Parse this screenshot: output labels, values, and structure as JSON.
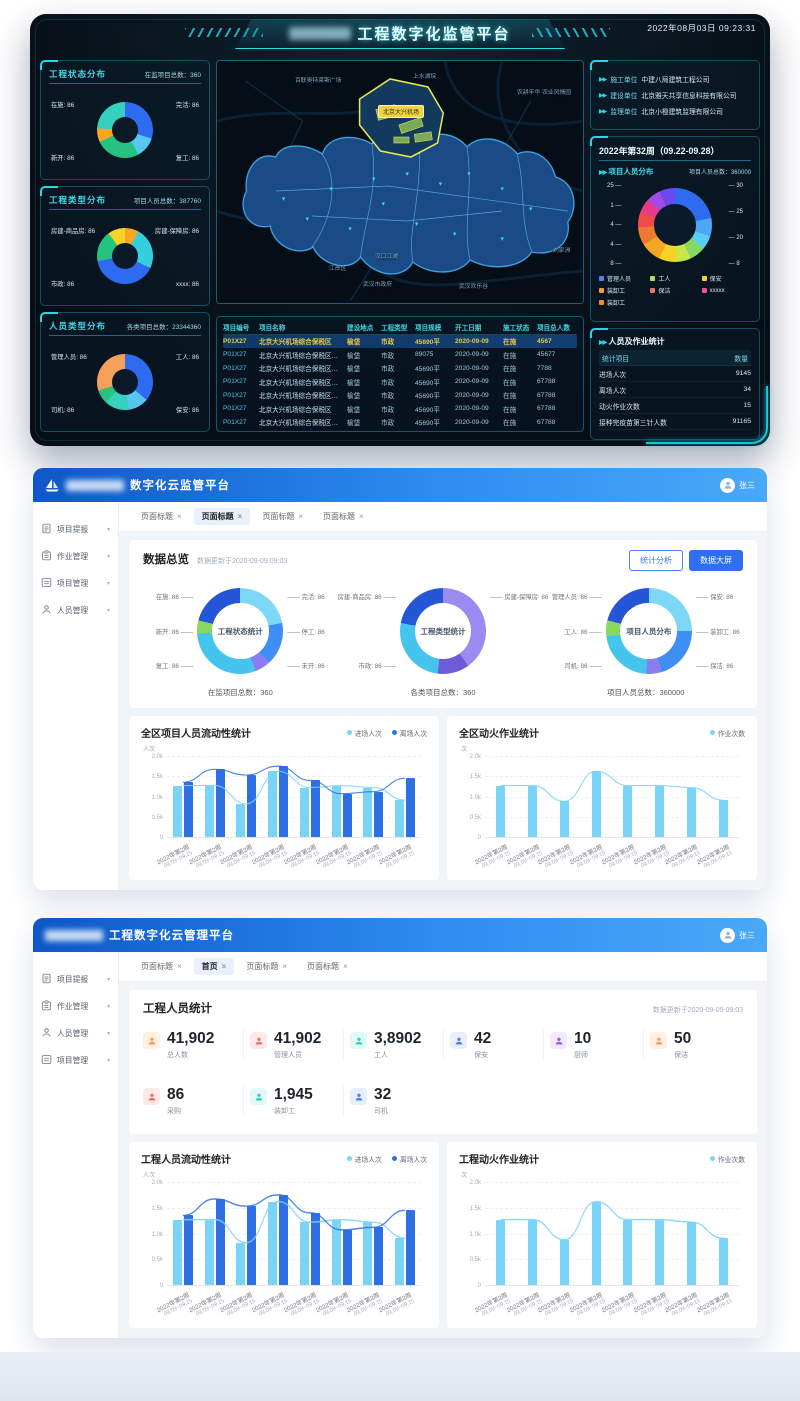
{
  "dashboard": {
    "title": "工程数字化监管平台",
    "datetime": "2022年08月03日 09:23:31",
    "left_panels": [
      {
        "title": "工程状态分布",
        "stat": "在监项目总数：360",
        "labels": {
          "tl": "在施: 86",
          "tr": "完活: 86",
          "bl": "新开: 86",
          "br": "复工: 86"
        },
        "segments": [
          {
            "color": "#2f6bf0",
            "pct": 30
          },
          {
            "color": "#57c7f0",
            "pct": 12
          },
          {
            "color": "#26c281",
            "pct": 26
          },
          {
            "color": "#f5a623",
            "pct": 8
          },
          {
            "color": "#35d0c0",
            "pct": 24
          }
        ]
      },
      {
        "title": "工程类型分布",
        "stat": "项目人员总数：387760",
        "labels": {
          "tl": "房建-商品房: 86",
          "tr": "房建-保障房: 86",
          "bl": "市政: 86",
          "br": "xxxx: 86"
        },
        "segments": [
          {
            "color": "#f5a623",
            "pct": 8
          },
          {
            "color": "#35d0e0",
            "pct": 24
          },
          {
            "color": "#2f6bf0",
            "pct": 40
          },
          {
            "color": "#26c281",
            "pct": 18
          },
          {
            "color": "#f5d327",
            "pct": 10
          }
        ]
      },
      {
        "title": "人员类型分布",
        "stat": "各类项目总数：23344360",
        "labels": {
          "tl": "管理人员: 86",
          "tr": "工人: 86",
          "bl": "司机: 86",
          "br": "保安: 86"
        },
        "segments": [
          {
            "color": "#2f6bf0",
            "pct": 36
          },
          {
            "color": "#57c7f0",
            "pct": 12
          },
          {
            "color": "#35d0c0",
            "pct": 14
          },
          {
            "color": "#26c281",
            "pct": 8
          },
          {
            "color": "#f5a05a",
            "pct": 30
          }
        ]
      }
    ],
    "map": {
      "badge": "北京大兴机场",
      "labels": [
        "百联奥特莱斯广场",
        "上水湖垸",
        "农耕年华·农业风情园",
        "汉口江滩",
        "江岸区",
        "武汉市政府",
        "武汉欢乐谷",
        "刘家洲"
      ]
    },
    "table": {
      "headers": [
        "项目编号",
        "项目名称",
        "建设地点",
        "工程类型",
        "项目规模",
        "开工日期",
        "施工状态",
        "项目总人数"
      ],
      "rows": [
        [
          "P01X27",
          "北京大兴机场综合保税区",
          "榆垡",
          "市政",
          "45690平",
          "2020-09-09",
          "在施",
          "4567"
        ],
        [
          "P01X27",
          "北京大兴机场综合保税区民生省…",
          "榆垡",
          "市政",
          "89075",
          "2020-09-09",
          "在施",
          "45677"
        ],
        [
          "P01X27",
          "北京大兴机场综合保税区民生省…",
          "榆垡",
          "市政",
          "45690平",
          "2020-09-09",
          "在施",
          "7788"
        ],
        [
          "P01X27",
          "北京大兴机场综合保税区民生省…",
          "榆垡",
          "市政",
          "45690平",
          "2020-09-09",
          "在施",
          "67788"
        ],
        [
          "P01X27",
          "北京大兴机场综合保税区民生省…",
          "榆垡",
          "市政",
          "45690平",
          "2020-09-09",
          "在施",
          "67788"
        ],
        [
          "P01X27",
          "北京大兴机场综合保税区",
          "榆垡",
          "市政",
          "45690平",
          "2020-09-09",
          "在施",
          "67788"
        ],
        [
          "P01X27",
          "北京大兴机场综合保税区民生省…",
          "榆垡",
          "市政",
          "45690平",
          "2020-09-09",
          "在施",
          "67788"
        ]
      ],
      "highlight_row": 0
    },
    "info": [
      {
        "label": "施工单位",
        "value": "中建八局建筑工程公司"
      },
      {
        "label": "建设单位",
        "value": "北京雅天共享信息科技有限公司"
      },
      {
        "label": "监理单位",
        "value": "北京小橙建筑监理有限公司"
      }
    ],
    "week": {
      "title": "2022年第32周（09.22-09.28）",
      "subtitle": "项目人员分布",
      "stat": "项目人员总数：360000",
      "callouts_left": [
        "25",
        "1",
        "4",
        "4",
        "8"
      ],
      "callouts_right": [
        "30",
        "25",
        "20",
        "8"
      ],
      "segments": [
        {
          "color": "#2f6bf0",
          "pct": 22
        },
        {
          "color": "#4aa8f5",
          "pct": 8
        },
        {
          "color": "#57d0f0",
          "pct": 6
        },
        {
          "color": "#8ad75f",
          "pct": 7
        },
        {
          "color": "#c8e84a",
          "pct": 6
        },
        {
          "color": "#f5d327",
          "pct": 8
        },
        {
          "color": "#f5a623",
          "pct": 9
        },
        {
          "color": "#f07830",
          "pct": 8
        },
        {
          "color": "#f04a4a",
          "pct": 7
        },
        {
          "color": "#e83a8c",
          "pct": 6
        },
        {
          "color": "#a04ae8",
          "pct": 6
        },
        {
          "color": "#6a4af0",
          "pct": 7
        }
      ],
      "legend": [
        {
          "label": "管理人员",
          "color": "#4a84f0"
        },
        {
          "label": "工人",
          "color": "#a8e063"
        },
        {
          "label": "保安",
          "color": "#f5d327"
        },
        {
          "label": "装卸工",
          "color": "#f59b45"
        },
        {
          "label": "保洁",
          "color": "#f26d6d"
        },
        {
          "label": "xxxxx",
          "color": "#f050a0"
        },
        {
          "label": "装卸工",
          "color": "#f58b2d"
        }
      ]
    },
    "ops": {
      "title": "人员及作业统计",
      "headers": [
        "统计项目",
        "数量"
      ],
      "rows": [
        [
          "进场人次",
          "9145"
        ],
        [
          "离场人次",
          "34"
        ],
        [
          "动火作业次数",
          "15"
        ],
        [
          "接种完疫苗第三针人数",
          "91165"
        ]
      ]
    }
  },
  "monitor": {
    "title": "数字化云监管平台",
    "user": "张三",
    "sidebar": [
      {
        "label": "项目提报",
        "icon": "doc-icon"
      },
      {
        "label": "作业管理",
        "icon": "clipboard-icon"
      },
      {
        "label": "项目管理",
        "icon": "list-icon"
      },
      {
        "label": "人员管理",
        "icon": "person-icon"
      }
    ],
    "tabs": [
      {
        "label": "页面标题",
        "active": false
      },
      {
        "label": "页面标题",
        "active": true
      },
      {
        "label": "页面标题",
        "active": false
      },
      {
        "label": "页面标题",
        "active": false
      }
    ],
    "section_title": "数据总览",
    "updated": "数据更新于2020-09-09 09:03",
    "buttons": {
      "analyze": "统计分析",
      "screen": "数据大屏"
    },
    "donuts": [
      {
        "center": "工程状态统计",
        "caption": "在监项目总数：360",
        "labels_left": [
          "在施: 86",
          "新开: 86",
          "复工: 86"
        ],
        "labels_right": [
          "完活: 86",
          "停工: 86",
          "未开: 86"
        ],
        "segments": [
          {
            "color": "#7dd8f7",
            "pct": 22
          },
          {
            "color": "#3f8ef5",
            "pct": 16
          },
          {
            "color": "#8b7cf0",
            "pct": 6
          },
          {
            "color": "#45c5ee",
            "pct": 30
          },
          {
            "color": "#8ad75f",
            "pct": 5
          },
          {
            "color": "#2556d8",
            "pct": 21
          }
        ]
      },
      {
        "center": "工程类型统计",
        "caption": "各类项目总数：360",
        "labels_left": [
          "房建-商品房: 86",
          "市政: 86"
        ],
        "labels_right": [
          "房建-保障房: 86"
        ],
        "segments": [
          {
            "color": "#9b8af0",
            "pct": 40
          },
          {
            "color": "#6f5bd8",
            "pct": 12
          },
          {
            "color": "#45c5ee",
            "pct": 26
          },
          {
            "color": "#2556d8",
            "pct": 22
          }
        ]
      },
      {
        "center": "项目人员分布",
        "caption": "项目人员总数：360000",
        "labels_left": [
          "管理人员: 86",
          "工人: 86",
          "司机: 86"
        ],
        "labels_right": [
          "保安: 86",
          "装卸工: 86",
          "保洁: 86"
        ],
        "segments": [
          {
            "color": "#7dd8f7",
            "pct": 25
          },
          {
            "color": "#3f8ef5",
            "pct": 20
          },
          {
            "color": "#8b7cf0",
            "pct": 6
          },
          {
            "color": "#45c5ee",
            "pct": 22
          },
          {
            "color": "#8ad75f",
            "pct": 6
          },
          {
            "color": "#2556d8",
            "pct": 21
          }
        ]
      }
    ],
    "charts": [
      {
        "title": "全区项目人员流动性统计",
        "ylabel": "人次",
        "ymax": 2000,
        "yticks": [
          "0",
          "0.5k",
          "1.0k",
          "1.5k",
          "2.0k"
        ],
        "legend": [
          {
            "label": "进场人次",
            "color": "#7AD4F5"
          },
          {
            "label": "离场人次",
            "color": "#2F6FE4"
          }
        ],
        "categories": [
          {
            "week": "2022年第2周",
            "range": "09.09~09.15"
          },
          {
            "week": "2022年第2周",
            "range": "09.09~09.15"
          },
          {
            "week": "2022年第2周",
            "range": "09.09~09.15"
          },
          {
            "week": "2022年第2周",
            "range": "09.09~09.15"
          },
          {
            "week": "2022年第2周",
            "range": "09.09~09.15"
          },
          {
            "week": "2022年第2周",
            "range": "09.09~09.15"
          },
          {
            "week": "2022年第2周",
            "range": "09.09~09.15"
          },
          {
            "week": "2022年第2周",
            "range": "09.09~09.15"
          }
        ],
        "series": [
          {
            "name": "进场人次",
            "color": "#7AD4F5",
            "values": [
              1270,
              1270,
              820,
              1620,
              1220,
              1270,
              1220,
              910
            ]
          },
          {
            "name": "离场人次",
            "color": "#2F6FE4",
            "values": [
              1350,
              1670,
              1530,
              1750,
              1400,
              1070,
              1120,
              1450
            ]
          }
        ]
      },
      {
        "title": "全区动火作业统计",
        "ylabel": "次",
        "ymax": 2000,
        "yticks": [
          "0",
          "0.5k",
          "1.0k",
          "1.5k",
          "2.0k"
        ],
        "legend": [
          {
            "label": "作业次数",
            "color": "#7AD4F5"
          }
        ],
        "categories": [
          {
            "week": "2022年第2周",
            "range": "09.09~09.15"
          },
          {
            "week": "2022年第2周",
            "range": "09.09~09.15"
          },
          {
            "week": "2022年第2周",
            "range": "09.09~09.15"
          },
          {
            "week": "2022年第2周",
            "range": "09.09~09.15"
          },
          {
            "week": "2022年第2周",
            "range": "09.09~09.15"
          },
          {
            "week": "2022年第2周",
            "range": "09.09~09.15"
          },
          {
            "week": "2022年第2周",
            "range": "09.09~09.15"
          },
          {
            "week": "2022年第2周",
            "range": "09.09~09.15"
          }
        ],
        "series": [
          {
            "name": "作业次数",
            "color": "#7AD4F5",
            "values": [
              1270,
              1270,
              880,
              1620,
              1270,
              1270,
              1220,
              910
            ]
          }
        ]
      }
    ]
  },
  "manage": {
    "title": "工程数字化云管理平台",
    "user": "张三",
    "sidebar": [
      {
        "label": "项目提报",
        "icon": "doc-icon"
      },
      {
        "label": "作业管理",
        "icon": "clipboard-icon"
      },
      {
        "label": "人员管理",
        "icon": "person-icon"
      },
      {
        "label": "项目管理",
        "icon": "list-icon"
      }
    ],
    "tabs": [
      {
        "label": "页面标题",
        "active": false
      },
      {
        "label": "首页",
        "active": true
      },
      {
        "label": "页面标题",
        "active": false
      },
      {
        "label": "页面标题",
        "active": false
      }
    ],
    "section_title": "工程人员统计",
    "updated": "数据更新于2020-09-09 09:03",
    "stats": [
      {
        "value": "41,902",
        "label": "总人数",
        "fg": "#f59b45",
        "bg": "#fdf1e4"
      },
      {
        "value": "41,902",
        "label": "管理人员",
        "fg": "#f26d6d",
        "bg": "#fde9e9"
      },
      {
        "value": "3,8902",
        "label": "工人",
        "fg": "#2ed3c2",
        "bg": "#e2faf6"
      },
      {
        "value": "42",
        "label": "保安",
        "fg": "#4a84f0",
        "bg": "#e7effd"
      },
      {
        "value": "10",
        "label": "厨师",
        "fg": "#9b59f0",
        "bg": "#f3ebfd"
      },
      {
        "value": "50",
        "label": "保洁",
        "fg": "#f5a04b",
        "bg": "#fdf1e4"
      },
      {
        "value": "86",
        "label": "采购",
        "fg": "#f26d6d",
        "bg": "#fde9e9"
      },
      {
        "value": "1,945",
        "label": "装卸工",
        "fg": "#2ed3c2",
        "bg": "#e2faf6"
      },
      {
        "value": "32",
        "label": "司机",
        "fg": "#4a84f0",
        "bg": "#e7effd"
      }
    ],
    "charts": [
      {
        "title": "工程人员流动性统计",
        "ylabel": "人次",
        "ymax": 2000,
        "yticks": [
          "0",
          "0.5k",
          "1.0k",
          "1.5k",
          "2.0k"
        ],
        "legend": [
          {
            "label": "进场人次",
            "color": "#7AD4F5"
          },
          {
            "label": "离场人次",
            "color": "#2F6FE4"
          }
        ],
        "categories": [
          {
            "week": "2022年第2周",
            "range": "09.09~09.15"
          },
          {
            "week": "2022年第2周",
            "range": "09.09~09.15"
          },
          {
            "week": "2022年第2周",
            "range": "09.09~09.15"
          },
          {
            "week": "2022年第2周",
            "range": "09.09~09.15"
          },
          {
            "week": "2022年第2周",
            "range": "09.09~09.15"
          },
          {
            "week": "2022年第2周",
            "range": "09.09~09.15"
          },
          {
            "week": "2022年第2周",
            "range": "09.09~09.15"
          },
          {
            "week": "2022年第2周",
            "range": "09.09~09.15"
          }
        ],
        "series": [
          {
            "name": "进场人次",
            "color": "#7AD4F5",
            "values": [
              1270,
              1270,
              820,
              1620,
              1220,
              1270,
              1220,
              910
            ]
          },
          {
            "name": "离场人次",
            "color": "#2F6FE4",
            "values": [
              1350,
              1670,
              1530,
              1750,
              1400,
              1070,
              1120,
              1450
            ]
          }
        ]
      },
      {
        "title": "工程动火作业统计",
        "ylabel": "次",
        "ymax": 2000,
        "yticks": [
          "0",
          "0.5k",
          "1.0k",
          "1.5k",
          "2.0k"
        ],
        "legend": [
          {
            "label": "作业次数",
            "color": "#7AD4F5"
          }
        ],
        "categories": [
          {
            "week": "2022年第2周",
            "range": "09.09~09.15"
          },
          {
            "week": "2022年第2周",
            "range": "09.09~09.15"
          },
          {
            "week": "2022年第2周",
            "range": "09.09~09.15"
          },
          {
            "week": "2022年第2周",
            "range": "09.09~09.15"
          },
          {
            "week": "2022年第2周",
            "range": "09.09~09.15"
          },
          {
            "week": "2022年第2周",
            "range": "09.09~09.15"
          },
          {
            "week": "2022年第2周",
            "range": "09.09~09.15"
          },
          {
            "week": "2022年第2周",
            "range": "09.09~09.15"
          }
        ],
        "series": [
          {
            "name": "作业次数",
            "color": "#7AD4F5",
            "values": [
              1270,
              1270,
              880,
              1620,
              1270,
              1270,
              1220,
              910
            ]
          }
        ]
      }
    ]
  }
}
